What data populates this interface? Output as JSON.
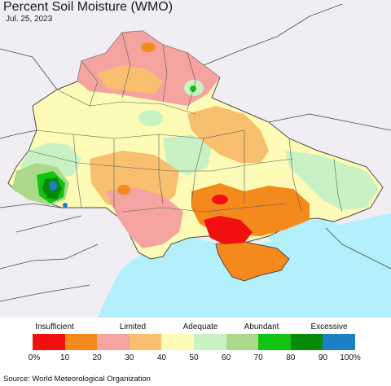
{
  "title": "Percent Soil Moisture (WMO)",
  "date": "Jul. 25, 2023",
  "source": "Source: World Meteorological Organization",
  "legend": {
    "categories": [
      {
        "label": "Insufficient",
        "position": 0.07
      },
      {
        "label": "Limited",
        "position": 0.31
      },
      {
        "label": "Adequate",
        "position": 0.52
      },
      {
        "label": "Abundant",
        "position": 0.71
      },
      {
        "label": "Excessive",
        "position": 0.92
      }
    ],
    "colors": [
      "#f01010",
      "#f58a1c",
      "#f5a3a0",
      "#f8bf6e",
      "#fdfbb5",
      "#c9f2c4",
      "#aad98a",
      "#12c412",
      "#0a8a0a",
      "#1e7fc4"
    ],
    "ticks": [
      "0%",
      "10",
      "20",
      "30",
      "40",
      "50",
      "60",
      "70",
      "80",
      "90",
      "100%"
    ]
  },
  "colors": {
    "sea": "#b3f0fb",
    "outside_land": "#f0eef2",
    "border": "#4a4a4a"
  }
}
